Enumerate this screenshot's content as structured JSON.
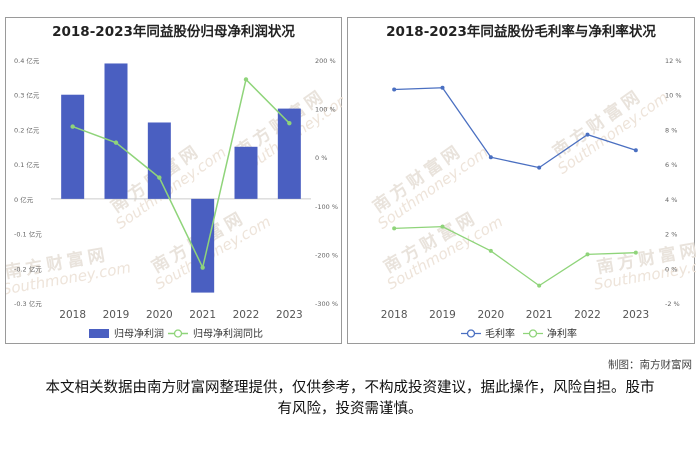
{
  "watermark": {
    "brand": "南方财富网",
    "url": "Southmoney.com"
  },
  "credit": "制图：南方财富网",
  "disclaimer": "本文相关数据由南方财富网整理提供，仅供参考，不构成投资建议，据此操作，风险自担。股市有风险，投资需谨慎。",
  "chart_data": [
    {
      "type": "bar",
      "title": "2018-2023年同益股份归母净利润状况",
      "categories": [
        "2018",
        "2019",
        "2020",
        "2021",
        "2022",
        "2023"
      ],
      "y_left": {
        "ticks": [
          "0.4 亿元",
          "0.3 亿元",
          "0.2 亿元",
          "0.1 亿元",
          "0 亿元",
          "-0.1 亿元",
          "-0.2 亿元",
          "-0.3 亿元"
        ],
        "range": [
          -0.3,
          0.4
        ]
      },
      "y_right": {
        "ticks": [
          "200 %",
          "100 %",
          "0 %",
          "-100 %",
          "-200 %",
          "-300 %"
        ],
        "range": [
          -300,
          200
        ]
      },
      "series": [
        {
          "name": "归母净利润",
          "kind": "bar",
          "axis": "left",
          "color": "#4a5fc1",
          "values": [
            0.3,
            0.39,
            0.22,
            -0.27,
            0.15,
            0.26
          ]
        },
        {
          "name": "归母净利润同比",
          "kind": "line",
          "axis": "right",
          "color": "#8fd47a",
          "values": [
            63,
            30,
            -42,
            -227,
            160,
            70
          ]
        }
      ],
      "legend": "bottom"
    },
    {
      "type": "line",
      "title": "2018-2023年同益股份毛利率与净利率状况",
      "categories": [
        "2018",
        "2019",
        "2020",
        "2021",
        "2022",
        "2023"
      ],
      "y_right": {
        "ticks": [
          "12 %",
          "10 %",
          "8 %",
          "6 %",
          "4 %",
          "2 %",
          "0 %",
          "-2 %"
        ],
        "range": [
          -2,
          12
        ]
      },
      "series": [
        {
          "name": "毛利率",
          "color": "#4a6fc1",
          "values": [
            10.3,
            10.4,
            6.4,
            5.8,
            7.7,
            6.8
          ]
        },
        {
          "name": "净利率",
          "color": "#8fd47a",
          "values": [
            2.3,
            2.4,
            1.0,
            -1.0,
            0.8,
            0.9
          ]
        }
      ],
      "legend": "bottom"
    }
  ]
}
